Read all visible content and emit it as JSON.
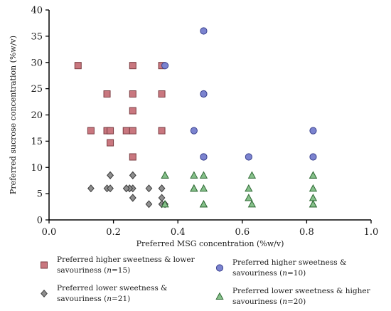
{
  "chart_data": {
    "type": "scatter",
    "title": "",
    "xlabel": "Preferred MSG concentration (%w/v)",
    "ylabel": "Preferred sucrose concentration (%w/v)",
    "xlim": [
      0,
      1.0
    ],
    "ylim": [
      0,
      40
    ],
    "xticks": [
      0.0,
      0.2,
      0.4,
      0.6,
      0.8,
      1.0
    ],
    "xtick_labels": [
      "0.0",
      "0.2",
      "0.4",
      "0.6",
      "0.8",
      "1.0"
    ],
    "yticks": [
      0,
      5,
      10,
      15,
      20,
      25,
      30,
      35,
      40
    ],
    "ytick_labels": [
      "0",
      "5",
      "10",
      "15",
      "20",
      "25",
      "30",
      "35",
      "40"
    ],
    "grid": false,
    "legend_position": "bottom",
    "series": [
      {
        "name": "Preferred higher sweetness & lower savouriness (n=15)",
        "legend_line1": "Preferred higher sweetness & lower",
        "legend_line2_pre": "savouriness (",
        "legend_italic": "n",
        "legend_line2_post": "=15)",
        "marker": "square",
        "color": "#c9777f",
        "stroke": "#7a3b40",
        "points": [
          [
            0.09,
            29.4
          ],
          [
            0.26,
            29.4
          ],
          [
            0.35,
            29.4
          ],
          [
            0.18,
            24.0
          ],
          [
            0.26,
            24.0
          ],
          [
            0.35,
            24.0
          ],
          [
            0.26,
            20.8
          ],
          [
            0.13,
            17.0
          ],
          [
            0.18,
            17.0
          ],
          [
            0.19,
            17.0
          ],
          [
            0.24,
            17.0
          ],
          [
            0.26,
            17.0
          ],
          [
            0.35,
            17.0
          ],
          [
            0.19,
            14.7
          ],
          [
            0.26,
            12.0
          ]
        ]
      },
      {
        "name": "Preferred higher sweetness & savouriness (n=10)",
        "legend_line1": "Preferred higher sweetness &",
        "legend_line2_pre": "savouriness (",
        "legend_italic": "n",
        "legend_line2_post": "=10)",
        "marker": "circle",
        "color": "#7b83cf",
        "stroke": "#3c4390",
        "points": [
          [
            0.48,
            36.0
          ],
          [
            0.36,
            29.4
          ],
          [
            0.48,
            24.0
          ],
          [
            0.45,
            17.0
          ],
          [
            0.82,
            17.0
          ],
          [
            0.48,
            12.0
          ],
          [
            0.62,
            12.0
          ],
          [
            0.82,
            12.0
          ],
          [
            0.48,
            24.0
          ],
          [
            0.48,
            12.0
          ]
        ]
      },
      {
        "name": "Preferred lower sweetness & savouriness (n=21)",
        "legend_line1": "Preferred lower sweetness &",
        "legend_line2_pre": "savouriness (",
        "legend_italic": "n",
        "legend_line2_post": "=21)",
        "marker": "diamond",
        "color": "#8f8f8f",
        "stroke": "#3d3d3d",
        "points": [
          [
            0.19,
            8.5
          ],
          [
            0.26,
            8.5
          ],
          [
            0.13,
            6.0
          ],
          [
            0.18,
            6.0
          ],
          [
            0.19,
            6.0
          ],
          [
            0.24,
            6.0
          ],
          [
            0.25,
            6.0
          ],
          [
            0.26,
            6.0
          ],
          [
            0.31,
            6.0
          ],
          [
            0.35,
            6.0
          ],
          [
            0.25,
            6.0
          ],
          [
            0.26,
            4.2
          ],
          [
            0.35,
            4.2
          ],
          [
            0.31,
            3.0
          ],
          [
            0.35,
            3.0
          ],
          [
            0.36,
            3.0
          ],
          [
            0.19,
            8.5
          ],
          [
            0.26,
            8.5
          ],
          [
            0.24,
            6.0
          ],
          [
            0.35,
            6.0
          ],
          [
            0.26,
            4.2
          ]
        ]
      },
      {
        "name": "Preferred lower sweetness & higher savouriness (n=20)",
        "legend_line1": "Preferred lower sweetness & higher",
        "legend_line2_pre": "savouriness (",
        "legend_italic": "n",
        "legend_line2_post": "=20)",
        "marker": "triangle",
        "color": "#86c08a",
        "stroke": "#2f6a35",
        "points": [
          [
            0.36,
            8.5
          ],
          [
            0.45,
            8.5
          ],
          [
            0.48,
            8.5
          ],
          [
            0.63,
            8.5
          ],
          [
            0.82,
            8.5
          ],
          [
            0.45,
            6.0
          ],
          [
            0.48,
            6.0
          ],
          [
            0.62,
            6.0
          ],
          [
            0.82,
            6.0
          ],
          [
            0.62,
            4.2
          ],
          [
            0.82,
            4.2
          ],
          [
            0.36,
            3.0
          ],
          [
            0.48,
            3.0
          ],
          [
            0.63,
            3.0
          ],
          [
            0.82,
            3.0
          ],
          [
            0.45,
            6.0
          ],
          [
            0.48,
            3.0
          ],
          [
            0.82,
            3.0
          ],
          [
            0.36,
            8.5
          ],
          [
            0.82,
            8.5
          ]
        ]
      }
    ]
  }
}
